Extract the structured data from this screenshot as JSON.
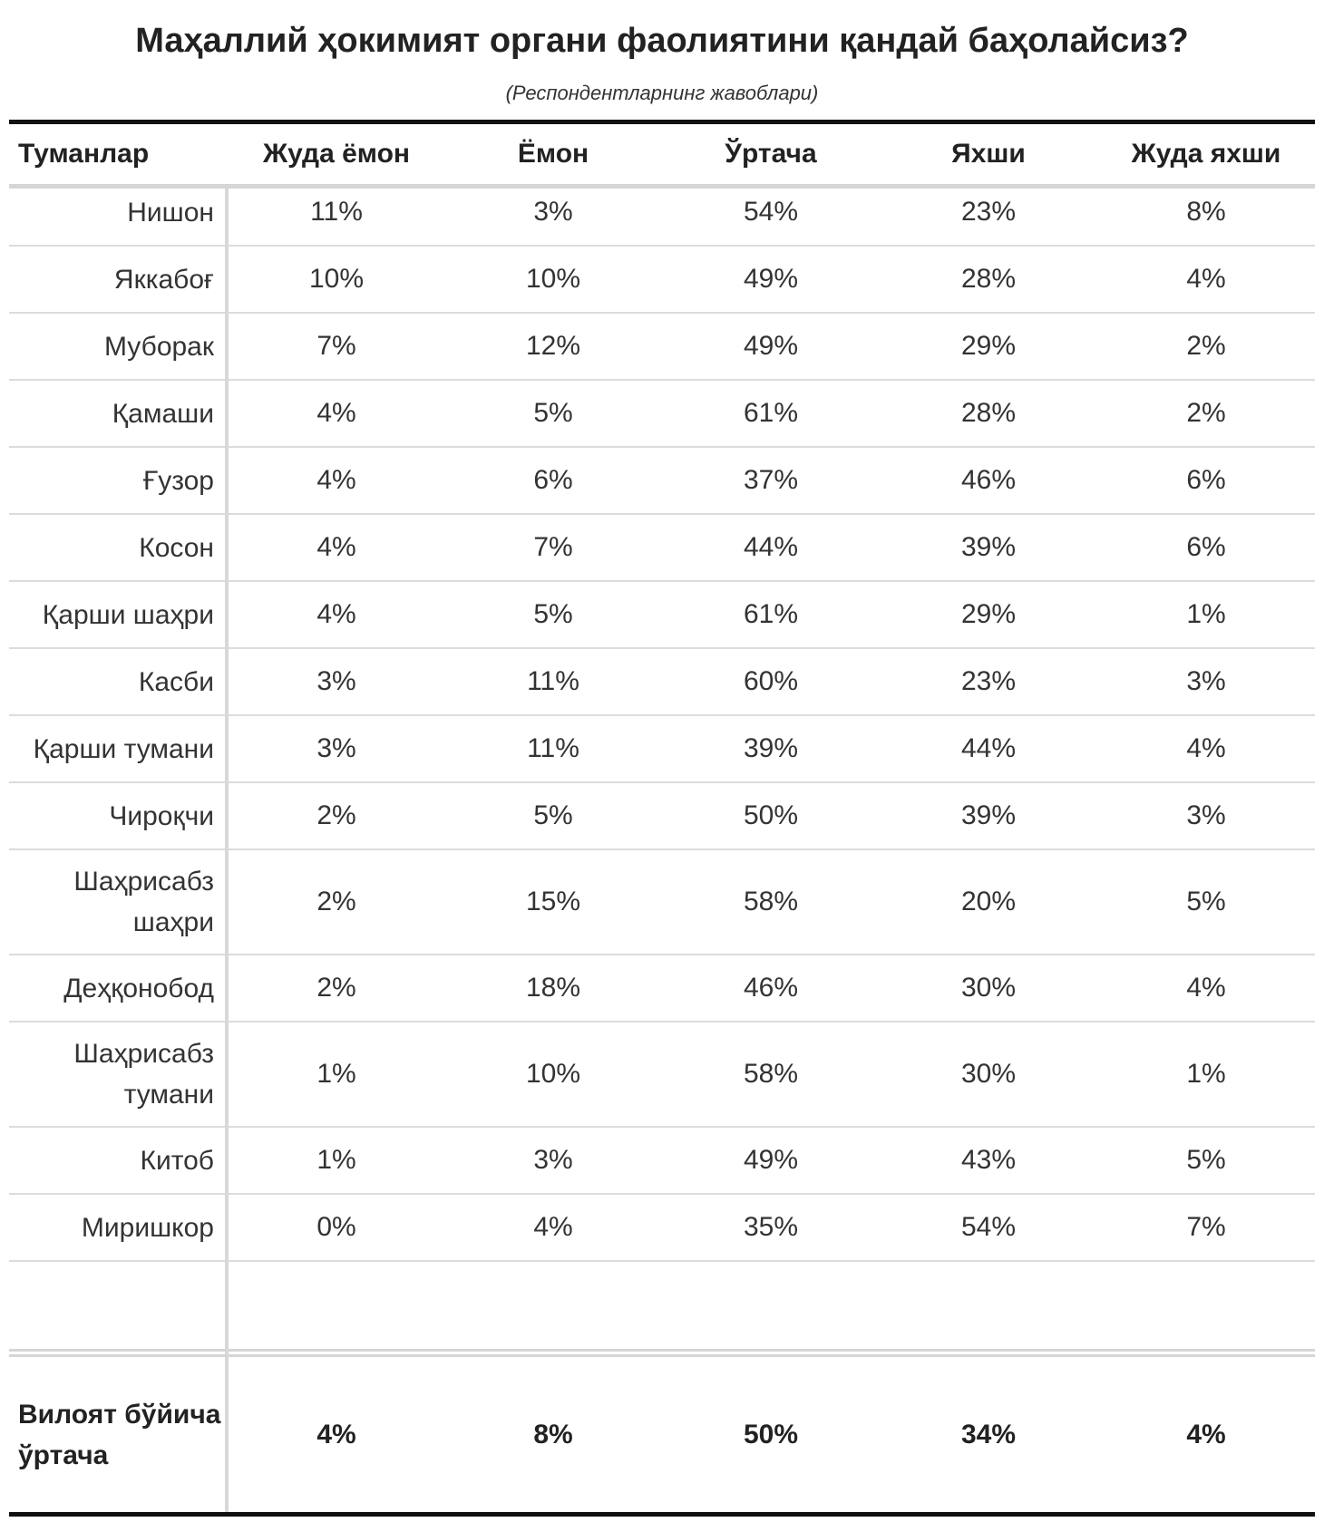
{
  "chart_data": {
    "type": "table",
    "title": "Маҳаллий ҳокимият органи фаолиятини қандай баҳолайсиз?",
    "subtitle": "(Респондентларнинг жавоблари)",
    "columns": [
      "Туманлар",
      "Жуда ёмон",
      "Ёмон",
      "Ўртача",
      "Яхши",
      "Жуда яхши"
    ],
    "rows": [
      {
        "name": "Нишон",
        "values": [
          "11%",
          "3%",
          "54%",
          "23%",
          "8%"
        ]
      },
      {
        "name": "Яккабоғ",
        "values": [
          "10%",
          "10%",
          "49%",
          "28%",
          "4%"
        ]
      },
      {
        "name": "Муборак",
        "values": [
          "7%",
          "12%",
          "49%",
          "29%",
          "2%"
        ]
      },
      {
        "name": "Қамаши",
        "values": [
          "4%",
          "5%",
          "61%",
          "28%",
          "2%"
        ]
      },
      {
        "name": "Ғузор",
        "values": [
          "4%",
          "6%",
          "37%",
          "46%",
          "6%"
        ]
      },
      {
        "name": "Косон",
        "values": [
          "4%",
          "7%",
          "44%",
          "39%",
          "6%"
        ]
      },
      {
        "name": "Қарши шаҳри",
        "values": [
          "4%",
          "5%",
          "61%",
          "29%",
          "1%"
        ]
      },
      {
        "name": "Касби",
        "values": [
          "3%",
          "11%",
          "60%",
          "23%",
          "3%"
        ]
      },
      {
        "name": "Қарши тумани",
        "values": [
          "3%",
          "11%",
          "39%",
          "44%",
          "4%"
        ]
      },
      {
        "name": "Чироқчи",
        "values": [
          "2%",
          "5%",
          "50%",
          "39%",
          "3%"
        ]
      },
      {
        "name": "Шаҳрисабз шаҳри",
        "values": [
          "2%",
          "15%",
          "58%",
          "20%",
          "5%"
        ]
      },
      {
        "name": "Деҳқонобод",
        "values": [
          "2%",
          "18%",
          "46%",
          "30%",
          "4%"
        ]
      },
      {
        "name": "Шаҳрисабз тумани",
        "values": [
          "1%",
          "10%",
          "58%",
          "30%",
          "1%"
        ]
      },
      {
        "name": "Китоб",
        "values": [
          "1%",
          "3%",
          "49%",
          "43%",
          "5%"
        ]
      },
      {
        "name": "Миришкор",
        "values": [
          "0%",
          "4%",
          "35%",
          "54%",
          "7%"
        ]
      }
    ],
    "summary": {
      "name": "Вилоят бўйича ўртача",
      "values": [
        "4%",
        "8%",
        "50%",
        "34%",
        "4%"
      ]
    }
  }
}
